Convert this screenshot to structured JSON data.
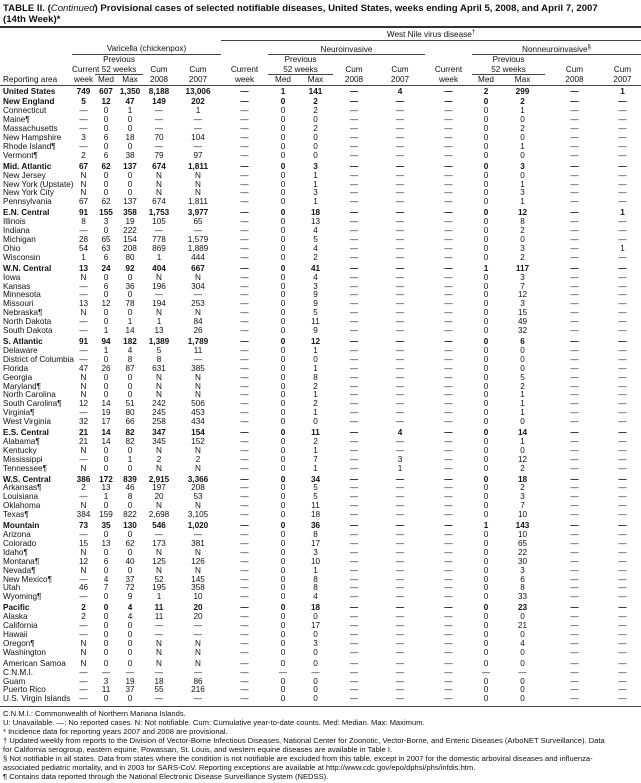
{
  "title": {
    "prefix": "TABLE II. (",
    "continued": "Continued",
    "rest": ") Provisional cases of selected notifiable diseases, United States, weeks ending April 5, 2008, and April 7, 2007",
    "line2": "(14th Week)*"
  },
  "header": {
    "wnv": "West Nile virus disease",
    "wnv_mark": "†",
    "varicella": "Varicella (chickenpox)",
    "neuro": "Neuroinvasive",
    "nonneuro": "Nonneuroinvasive",
    "nonneuro_mark": "§",
    "previous": "Previous",
    "weeks52": "52 weeks",
    "current": "Current",
    "week": "week",
    "med": "Med",
    "max": "Max",
    "cum": "Cum",
    "y2008": "2008",
    "y2007": "2007",
    "area": "Reporting area"
  },
  "rows": [
    {
      "g": 1,
      "c": [
        "United States",
        "749",
        "607",
        "1,350",
        "8,188",
        "13,006",
        "—",
        "1",
        "141",
        "—",
        "4",
        "—",
        "2",
        "299",
        "—",
        "1"
      ]
    },
    {
      "g": 1,
      "c": [
        "New England",
        "5",
        "12",
        "47",
        "149",
        "202",
        "—",
        "0",
        "2",
        "—",
        "—",
        "—",
        "0",
        "2",
        "—",
        "—"
      ]
    },
    {
      "c": [
        "Connecticut",
        "—",
        "0",
        "1",
        "—",
        "1",
        "—",
        "0",
        "2",
        "—",
        "—",
        "—",
        "0",
        "1",
        "—",
        "—"
      ]
    },
    {
      "c": [
        "Maine¶",
        "—",
        "0",
        "0",
        "—",
        "—",
        "—",
        "0",
        "0",
        "—",
        "—",
        "—",
        "0",
        "0",
        "—",
        "—"
      ]
    },
    {
      "c": [
        "Massachusetts",
        "—",
        "0",
        "0",
        "—",
        "—",
        "—",
        "0",
        "2",
        "—",
        "—",
        "—",
        "0",
        "2",
        "—",
        "—"
      ]
    },
    {
      "c": [
        "New Hampshire",
        "3",
        "6",
        "18",
        "70",
        "104",
        "—",
        "0",
        "0",
        "—",
        "—",
        "—",
        "0",
        "0",
        "—",
        "—"
      ]
    },
    {
      "c": [
        "Rhode Island¶",
        "—",
        "0",
        "0",
        "—",
        "—",
        "—",
        "0",
        "0",
        "—",
        "—",
        "—",
        "0",
        "1",
        "—",
        "—"
      ]
    },
    {
      "c": [
        "Vermont¶",
        "2",
        "6",
        "38",
        "79",
        "97",
        "—",
        "0",
        "0",
        "—",
        "—",
        "—",
        "0",
        "0",
        "—",
        "—"
      ]
    },
    {
      "g": 1,
      "c": [
        "Mid. Atlantic",
        "67",
        "62",
        "137",
        "674",
        "1,811",
        "—",
        "0",
        "3",
        "—",
        "—",
        "—",
        "0",
        "3",
        "—",
        "—"
      ]
    },
    {
      "c": [
        "New Jersey",
        "N",
        "0",
        "0",
        "N",
        "N",
        "—",
        "0",
        "1",
        "—",
        "—",
        "—",
        "0",
        "0",
        "—",
        "—"
      ]
    },
    {
      "c": [
        "New York (Upstate)",
        "N",
        "0",
        "0",
        "N",
        "N",
        "—",
        "0",
        "1",
        "—",
        "—",
        "—",
        "0",
        "1",
        "—",
        "—"
      ]
    },
    {
      "c": [
        "New York City",
        "N",
        "0",
        "0",
        "N",
        "N",
        "—",
        "0",
        "3",
        "—",
        "—",
        "—",
        "0",
        "3",
        "—",
        "—"
      ]
    },
    {
      "c": [
        "Pennsylvania",
        "67",
        "62",
        "137",
        "674",
        "1,811",
        "—",
        "0",
        "1",
        "—",
        "—",
        "—",
        "0",
        "1",
        "—",
        "—"
      ]
    },
    {
      "g": 1,
      "c": [
        "E.N. Central",
        "91",
        "155",
        "358",
        "1,753",
        "3,977",
        "—",
        "0",
        "18",
        "—",
        "—",
        "—",
        "0",
        "12",
        "—",
        "1"
      ]
    },
    {
      "c": [
        "Illinois",
        "8",
        "3",
        "19",
        "105",
        "65",
        "—",
        "0",
        "13",
        "—",
        "—",
        "—",
        "0",
        "8",
        "—",
        "—"
      ]
    },
    {
      "c": [
        "Indiana",
        "—",
        "0",
        "222",
        "—",
        "—",
        "—",
        "0",
        "4",
        "—",
        "—",
        "—",
        "0",
        "2",
        "—",
        "—"
      ]
    },
    {
      "c": [
        "Michigan",
        "28",
        "65",
        "154",
        "778",
        "1,579",
        "—",
        "0",
        "5",
        "—",
        "—",
        "—",
        "0",
        "0",
        "—",
        "—"
      ]
    },
    {
      "c": [
        "Ohio",
        "54",
        "63",
        "208",
        "869",
        "1,889",
        "—",
        "0",
        "4",
        "—",
        "—",
        "—",
        "0",
        "3",
        "—",
        "1"
      ]
    },
    {
      "c": [
        "Wisconsin",
        "1",
        "6",
        "80",
        "1",
        "444",
        "—",
        "0",
        "2",
        "—",
        "—",
        "—",
        "0",
        "2",
        "—",
        "—"
      ]
    },
    {
      "g": 1,
      "c": [
        "W.N. Central",
        "13",
        "24",
        "92",
        "404",
        "667",
        "—",
        "0",
        "41",
        "—",
        "—",
        "—",
        "1",
        "117",
        "—",
        "—"
      ]
    },
    {
      "c": [
        "Iowa",
        "N",
        "0",
        "0",
        "N",
        "N",
        "—",
        "0",
        "4",
        "—",
        "—",
        "—",
        "0",
        "3",
        "—",
        "—"
      ]
    },
    {
      "c": [
        "Kansas",
        "—",
        "6",
        "36",
        "196",
        "304",
        "—",
        "0",
        "3",
        "—",
        "—",
        "—",
        "0",
        "7",
        "—",
        "—"
      ]
    },
    {
      "c": [
        "Minnesota",
        "—",
        "0",
        "0",
        "—",
        "—",
        "—",
        "0",
        "9",
        "—",
        "—",
        "—",
        "0",
        "12",
        "—",
        "—"
      ]
    },
    {
      "c": [
        "Missouri",
        "13",
        "12",
        "78",
        "194",
        "253",
        "—",
        "0",
        "9",
        "—",
        "—",
        "—",
        "0",
        "3",
        "—",
        "—"
      ]
    },
    {
      "c": [
        "Nebraska¶",
        "N",
        "0",
        "0",
        "N",
        "N",
        "—",
        "0",
        "5",
        "—",
        "—",
        "—",
        "0",
        "15",
        "—",
        "—"
      ]
    },
    {
      "c": [
        "North Dakota",
        "—",
        "0",
        "1",
        "1",
        "84",
        "—",
        "0",
        "11",
        "—",
        "—",
        "—",
        "0",
        "49",
        "—",
        "—"
      ]
    },
    {
      "c": [
        "South Dakota",
        "—",
        "1",
        "14",
        "13",
        "26",
        "—",
        "0",
        "9",
        "—",
        "—",
        "—",
        "0",
        "32",
        "—",
        "—"
      ]
    },
    {
      "g": 1,
      "c": [
        "S. Atlantic",
        "91",
        "94",
        "182",
        "1,389",
        "1,789",
        "—",
        "0",
        "12",
        "—",
        "—",
        "—",
        "0",
        "6",
        "—",
        "—"
      ]
    },
    {
      "c": [
        "Delaware",
        "—",
        "1",
        "4",
        "5",
        "11",
        "—",
        "0",
        "1",
        "—",
        "—",
        "—",
        "0",
        "0",
        "—",
        "—"
      ]
    },
    {
      "c": [
        "District of Columbia",
        "—",
        "0",
        "8",
        "8",
        "—",
        "—",
        "0",
        "0",
        "—",
        "—",
        "—",
        "0",
        "0",
        "—",
        "—"
      ]
    },
    {
      "c": [
        "Florida",
        "47",
        "26",
        "87",
        "631",
        "385",
        "—",
        "0",
        "1",
        "—",
        "—",
        "—",
        "0",
        "0",
        "—",
        "—"
      ]
    },
    {
      "c": [
        "Georgia",
        "N",
        "0",
        "0",
        "N",
        "N",
        "—",
        "0",
        "8",
        "—",
        "—",
        "—",
        "0",
        "5",
        "—",
        "—"
      ]
    },
    {
      "c": [
        "Maryland¶",
        "N",
        "0",
        "0",
        "N",
        "N",
        "—",
        "0",
        "2",
        "—",
        "—",
        "—",
        "0",
        "2",
        "—",
        "—"
      ]
    },
    {
      "c": [
        "North Carolina",
        "N",
        "0",
        "0",
        "N",
        "N",
        "—",
        "0",
        "1",
        "—",
        "—",
        "—",
        "0",
        "1",
        "—",
        "—"
      ]
    },
    {
      "c": [
        "South Carolina¶",
        "12",
        "14",
        "51",
        "242",
        "506",
        "—",
        "0",
        "2",
        "—",
        "—",
        "—",
        "0",
        "1",
        "—",
        "—"
      ]
    },
    {
      "c": [
        "Virginia¶",
        "—",
        "19",
        "80",
        "245",
        "453",
        "—",
        "0",
        "1",
        "—",
        "—",
        "—",
        "0",
        "1",
        "—",
        "—"
      ]
    },
    {
      "c": [
        "West Virginia",
        "32",
        "17",
        "66",
        "258",
        "434",
        "—",
        "0",
        "0",
        "—",
        "—",
        "—",
        "0",
        "0",
        "—",
        "—"
      ]
    },
    {
      "g": 1,
      "c": [
        "E.S. Central",
        "21",
        "14",
        "82",
        "347",
        "154",
        "—",
        "0",
        "11",
        "—",
        "4",
        "—",
        "0",
        "14",
        "—",
        "—"
      ]
    },
    {
      "c": [
        "Alabama¶",
        "21",
        "14",
        "82",
        "345",
        "152",
        "—",
        "0",
        "2",
        "—",
        "—",
        "—",
        "0",
        "1",
        "—",
        "—"
      ]
    },
    {
      "c": [
        "Kentucky",
        "N",
        "0",
        "0",
        "N",
        "N",
        "—",
        "0",
        "1",
        "—",
        "—",
        "—",
        "0",
        "0",
        "—",
        "—"
      ]
    },
    {
      "c": [
        "Mississippi",
        "—",
        "0",
        "1",
        "2",
        "2",
        "—",
        "0",
        "7",
        "—",
        "3",
        "—",
        "0",
        "12",
        "—",
        "—"
      ]
    },
    {
      "c": [
        "Tennessee¶",
        "N",
        "0",
        "0",
        "N",
        "N",
        "—",
        "0",
        "1",
        "—",
        "1",
        "—",
        "0",
        "2",
        "—",
        "—"
      ]
    },
    {
      "g": 1,
      "c": [
        "W.S. Central",
        "386",
        "172",
        "839",
        "2,915",
        "3,366",
        "—",
        "0",
        "34",
        "—",
        "—",
        "—",
        "0",
        "18",
        "—",
        "—"
      ]
    },
    {
      "c": [
        "Arkansas¶",
        "2",
        "13",
        "46",
        "197",
        "208",
        "—",
        "0",
        "5",
        "—",
        "—",
        "—",
        "0",
        "2",
        "—",
        "—"
      ]
    },
    {
      "c": [
        "Louisiana",
        "—",
        "1",
        "8",
        "20",
        "53",
        "—",
        "0",
        "5",
        "—",
        "—",
        "—",
        "0",
        "3",
        "—",
        "—"
      ]
    },
    {
      "c": [
        "Oklahoma",
        "N",
        "0",
        "0",
        "N",
        "N",
        "—",
        "0",
        "11",
        "—",
        "—",
        "—",
        "0",
        "7",
        "—",
        "—"
      ]
    },
    {
      "c": [
        "Texas¶",
        "384",
        "159",
        "822",
        "2,698",
        "3,105",
        "—",
        "0",
        "18",
        "—",
        "—",
        "—",
        "0",
        "10",
        "—",
        "—"
      ]
    },
    {
      "g": 1,
      "c": [
        "Mountain",
        "73",
        "35",
        "130",
        "546",
        "1,020",
        "—",
        "0",
        "36",
        "—",
        "—",
        "—",
        "1",
        "143",
        "—",
        "—"
      ]
    },
    {
      "c": [
        "Arizona",
        "—",
        "0",
        "0",
        "—",
        "—",
        "—",
        "0",
        "8",
        "—",
        "—",
        "—",
        "0",
        "10",
        "—",
        "—"
      ]
    },
    {
      "c": [
        "Colorado",
        "15",
        "13",
        "62",
        "173",
        "381",
        "—",
        "0",
        "17",
        "—",
        "—",
        "—",
        "0",
        "65",
        "—",
        "—"
      ]
    },
    {
      "c": [
        "Idaho¶",
        "N",
        "0",
        "0",
        "N",
        "N",
        "—",
        "0",
        "3",
        "—",
        "—",
        "—",
        "0",
        "22",
        "—",
        "—"
      ]
    },
    {
      "c": [
        "Montana¶",
        "12",
        "6",
        "40",
        "125",
        "126",
        "—",
        "0",
        "10",
        "—",
        "—",
        "—",
        "0",
        "30",
        "—",
        "—"
      ]
    },
    {
      "c": [
        "Nevada¶",
        "N",
        "0",
        "0",
        "N",
        "N",
        "—",
        "0",
        "1",
        "—",
        "—",
        "—",
        "0",
        "3",
        "—",
        "—"
      ]
    },
    {
      "c": [
        "New Mexico¶",
        "—",
        "4",
        "37",
        "52",
        "145",
        "—",
        "0",
        "8",
        "—",
        "—",
        "—",
        "0",
        "6",
        "—",
        "—"
      ]
    },
    {
      "c": [
        "Utah",
        "46",
        "7",
        "72",
        "195",
        "358",
        "—",
        "0",
        "8",
        "—",
        "—",
        "—",
        "0",
        "8",
        "—",
        "—"
      ]
    },
    {
      "c": [
        "Wyoming¶",
        "—",
        "0",
        "9",
        "1",
        "10",
        "—",
        "0",
        "4",
        "—",
        "—",
        "—",
        "0",
        "33",
        "—",
        "—"
      ]
    },
    {
      "g": 1,
      "c": [
        "Pacific",
        "2",
        "0",
        "4",
        "11",
        "20",
        "—",
        "0",
        "18",
        "—",
        "—",
        "—",
        "0",
        "23",
        "—",
        "—"
      ]
    },
    {
      "c": [
        "Alaska",
        "2",
        "0",
        "4",
        "11",
        "20",
        "—",
        "0",
        "0",
        "—",
        "—",
        "—",
        "0",
        "0",
        "—",
        "—"
      ]
    },
    {
      "c": [
        "California",
        "—",
        "0",
        "0",
        "—",
        "—",
        "—",
        "0",
        "17",
        "—",
        "—",
        "—",
        "0",
        "21",
        "—",
        "—"
      ]
    },
    {
      "c": [
        "Hawaii",
        "—",
        "0",
        "0",
        "—",
        "—",
        "—",
        "0",
        "0",
        "—",
        "—",
        "—",
        "0",
        "0",
        "—",
        "—"
      ]
    },
    {
      "c": [
        "Oregon¶",
        "N",
        "0",
        "0",
        "N",
        "N",
        "—",
        "0",
        "3",
        "—",
        "—",
        "—",
        "0",
        "4",
        "—",
        "—"
      ]
    },
    {
      "c": [
        "Washington",
        "N",
        "0",
        "0",
        "N",
        "N",
        "—",
        "0",
        "0",
        "—",
        "—",
        "—",
        "0",
        "0",
        "—",
        "—"
      ]
    },
    {
      "t": 1,
      "c": [
        "American Samoa",
        "N",
        "0",
        "0",
        "N",
        "N",
        "—",
        "0",
        "0",
        "—",
        "—",
        "—",
        "0",
        "0",
        "—",
        "—"
      ]
    },
    {
      "c": [
        "C.N.M.I.",
        "—",
        "—",
        "—",
        "—",
        "—",
        "—",
        "—",
        "—",
        "—",
        "—",
        "—",
        "—",
        "—",
        "—",
        "—"
      ]
    },
    {
      "c": [
        "Guam",
        "—",
        "3",
        "19",
        "18",
        "86",
        "—",
        "0",
        "0",
        "—",
        "—",
        "—",
        "0",
        "0",
        "—",
        "—"
      ]
    },
    {
      "c": [
        "Puerto Rico",
        "—",
        "11",
        "37",
        "55",
        "216",
        "—",
        "0",
        "0",
        "—",
        "—",
        "—",
        "0",
        "0",
        "—",
        "—"
      ]
    },
    {
      "c": [
        "U.S. Virgin Islands",
        "—",
        "0",
        "0",
        "—",
        "—",
        "—",
        "0",
        "0",
        "—",
        "—",
        "—",
        "0",
        "0",
        "—",
        "—"
      ]
    }
  ],
  "notes": [
    "C.N.M.I.: Commonwealth of Northern Mariana Islands.",
    "U: Unavailable.    —: No reported cases.    N: Not notifiable.    Cum: Cumulative year-to-date counts.    Med: Median.    Max: Maximum.",
    "* Incidence data for reporting years 2007 and 2008 are provisional.",
    "† Updated weekly from reports to the Division of Vector-Borne Infectious Diseases, National Center for Zoonotic, Vector-Borne, and Enteric Diseases (ArboNET Surveillance). Data",
    "   for California serogroup, eastern equine, Powassan, St. Louis, and western equine diseases are available in Table I.",
    "§ Not notifiable in all states. Data from states where the condition is not notifiable are excluded from this table, except in 2007 for the domestic arboviral diseases and influenza-",
    "   associated pediatric mortality, and in 2003 for SARS-CoV. Reporting exceptions are available at http://www.cdc.gov/epo/dphsi/phs/infdis.htm.",
    "¶ Contains data reported through the National Electronic Disease Surveillance System (NEDSS)."
  ]
}
